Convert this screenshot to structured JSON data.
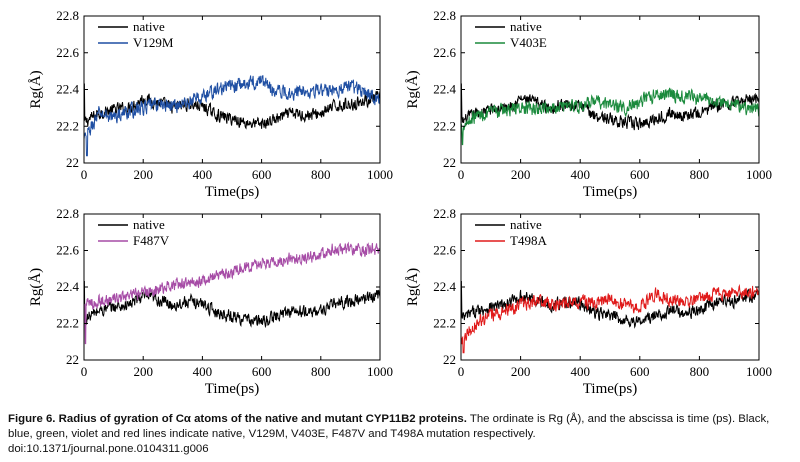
{
  "chart_data": [
    {
      "type": "line",
      "xlabel": "Time(ps)",
      "ylabel": "Rg(Å)",
      "xlim": [
        0,
        1000
      ],
      "ylim": [
        22,
        22.8
      ],
      "xticks": [
        "0",
        "200",
        "400",
        "600",
        "800",
        "1000"
      ],
      "yticks": [
        "22",
        "22.2",
        "22.4",
        "22.6",
        "22.8"
      ],
      "legend_position": "top-left",
      "series": [
        {
          "name": "native",
          "color": "#000000",
          "x": [
            0,
            50,
            100,
            150,
            200,
            250,
            300,
            350,
            400,
            450,
            500,
            550,
            600,
            650,
            700,
            750,
            800,
            850,
            900,
            950,
            1000
          ],
          "y": [
            22.22,
            22.27,
            22.29,
            22.3,
            22.35,
            22.33,
            22.3,
            22.32,
            22.31,
            22.26,
            22.24,
            22.22,
            22.21,
            22.24,
            22.27,
            22.26,
            22.27,
            22.31,
            22.32,
            22.34,
            22.36
          ],
          "noise": 0.03,
          "spike": [
            0,
            22.43
          ]
        },
        {
          "name": "V129M",
          "color": "#1f4fa3",
          "x": [
            0,
            50,
            100,
            150,
            200,
            250,
            300,
            350,
            400,
            450,
            500,
            550,
            600,
            650,
            700,
            750,
            800,
            850,
            900,
            950,
            1000
          ],
          "y": [
            22.12,
            22.27,
            22.25,
            22.28,
            22.3,
            22.32,
            22.31,
            22.33,
            22.36,
            22.4,
            22.42,
            22.43,
            22.45,
            22.39,
            22.38,
            22.4,
            22.39,
            22.4,
            22.42,
            22.39,
            22.34
          ],
          "noise": 0.035,
          "spike": [
            10,
            22.04
          ]
        }
      ]
    },
    {
      "type": "line",
      "xlabel": "Time(ps)",
      "ylabel": "Rg(Å)",
      "xlim": [
        0,
        1000
      ],
      "ylim": [
        22,
        22.8
      ],
      "xticks": [
        "0",
        "200",
        "400",
        "600",
        "800",
        "1000"
      ],
      "yticks": [
        "22",
        "22.2",
        "22.4",
        "22.6",
        "22.8"
      ],
      "legend_position": "top-left",
      "series": [
        {
          "name": "native",
          "color": "#000000",
          "x": [
            0,
            50,
            100,
            150,
            200,
            250,
            300,
            350,
            400,
            450,
            500,
            550,
            600,
            650,
            700,
            750,
            800,
            850,
            900,
            950,
            1000
          ],
          "y": [
            22.22,
            22.27,
            22.29,
            22.3,
            22.35,
            22.33,
            22.3,
            22.32,
            22.31,
            22.26,
            22.24,
            22.22,
            22.21,
            22.24,
            22.27,
            22.26,
            22.27,
            22.31,
            22.32,
            22.34,
            22.36
          ],
          "noise": 0.03,
          "spike": [
            0,
            22.43
          ]
        },
        {
          "name": "V403E",
          "color": "#1a8a3c",
          "x": [
            0,
            50,
            100,
            150,
            200,
            250,
            300,
            350,
            400,
            450,
            500,
            550,
            600,
            650,
            700,
            750,
            800,
            850,
            900,
            950,
            1000
          ],
          "y": [
            22.2,
            22.26,
            22.27,
            22.29,
            22.3,
            22.29,
            22.3,
            22.32,
            22.31,
            22.33,
            22.32,
            22.3,
            22.33,
            22.37,
            22.38,
            22.36,
            22.35,
            22.34,
            22.33,
            22.3,
            22.29
          ],
          "noise": 0.033,
          "spike": [
            5,
            22.1
          ]
        }
      ]
    },
    {
      "type": "line",
      "xlabel": "Time(ps)",
      "ylabel": "Rg(Å)",
      "xlim": [
        0,
        1000
      ],
      "ylim": [
        22,
        22.8
      ],
      "xticks": [
        "0",
        "200",
        "400",
        "600",
        "800",
        "1000"
      ],
      "yticks": [
        "22",
        "22.2",
        "22.4",
        "22.6",
        "22.8"
      ],
      "legend_position": "top-left",
      "series": [
        {
          "name": "native",
          "color": "#000000",
          "x": [
            0,
            50,
            100,
            150,
            200,
            250,
            300,
            350,
            400,
            450,
            500,
            550,
            600,
            650,
            700,
            750,
            800,
            850,
            900,
            950,
            1000
          ],
          "y": [
            22.22,
            22.27,
            22.29,
            22.3,
            22.35,
            22.33,
            22.3,
            22.32,
            22.31,
            22.26,
            22.24,
            22.22,
            22.21,
            22.24,
            22.27,
            22.26,
            22.27,
            22.31,
            22.32,
            22.34,
            22.36
          ],
          "noise": 0.03,
          "spike": [
            0,
            22.43
          ]
        },
        {
          "name": "F487V",
          "color": "#a64ca6",
          "x": [
            0,
            50,
            100,
            150,
            200,
            250,
            300,
            350,
            400,
            450,
            500,
            550,
            600,
            650,
            700,
            750,
            800,
            850,
            900,
            950,
            1000
          ],
          "y": [
            22.3,
            22.32,
            22.33,
            22.35,
            22.37,
            22.39,
            22.41,
            22.42,
            22.44,
            22.46,
            22.48,
            22.51,
            22.53,
            22.54,
            22.56,
            22.56,
            22.58,
            22.61,
            22.6,
            22.6,
            22.62
          ],
          "noise": 0.03,
          "spike": [
            5,
            22.09
          ]
        }
      ]
    },
    {
      "type": "line",
      "xlabel": "Time(ps)",
      "ylabel": "Rg(Å)",
      "xlim": [
        0,
        1000
      ],
      "ylim": [
        22,
        22.8
      ],
      "xticks": [
        "0",
        "200",
        "400",
        "600",
        "800",
        "1000"
      ],
      "yticks": [
        "22",
        "22.2",
        "22.4",
        "22.6",
        "22.8"
      ],
      "legend_position": "top-left",
      "series": [
        {
          "name": "native",
          "color": "#000000",
          "x": [
            0,
            50,
            100,
            150,
            200,
            250,
            300,
            350,
            400,
            450,
            500,
            550,
            600,
            650,
            700,
            750,
            800,
            850,
            900,
            950,
            1000
          ],
          "y": [
            22.22,
            22.27,
            22.29,
            22.3,
            22.35,
            22.33,
            22.3,
            22.32,
            22.31,
            22.26,
            22.24,
            22.22,
            22.21,
            22.24,
            22.27,
            22.26,
            22.27,
            22.31,
            22.32,
            22.34,
            22.36
          ],
          "noise": 0.03,
          "spike": [
            0,
            22.43
          ]
        },
        {
          "name": "T498A",
          "color": "#e01b1b",
          "x": [
            0,
            50,
            100,
            150,
            200,
            250,
            300,
            350,
            400,
            450,
            500,
            550,
            600,
            650,
            700,
            750,
            800,
            850,
            900,
            950,
            1000
          ],
          "y": [
            22.12,
            22.2,
            22.24,
            22.27,
            22.3,
            22.32,
            22.3,
            22.31,
            22.32,
            22.31,
            22.33,
            22.3,
            22.29,
            22.36,
            22.34,
            22.32,
            22.33,
            22.36,
            22.37,
            22.37,
            22.38
          ],
          "noise": 0.033,
          "spike": [
            8,
            22.04
          ]
        }
      ]
    }
  ],
  "caption": {
    "title": "Figure 6. Radius of gyration of Cα atoms of the native and mutant CYP11B2 proteins.",
    "body": " The ordinate is Rg (Å), and the abscissa is time (ps). Black, blue, green, violet and red lines indicate native, V129M, V403E, F487V and T498A mutation respectively.",
    "doi": "doi:10.1371/journal.pone.0104311.g006"
  }
}
